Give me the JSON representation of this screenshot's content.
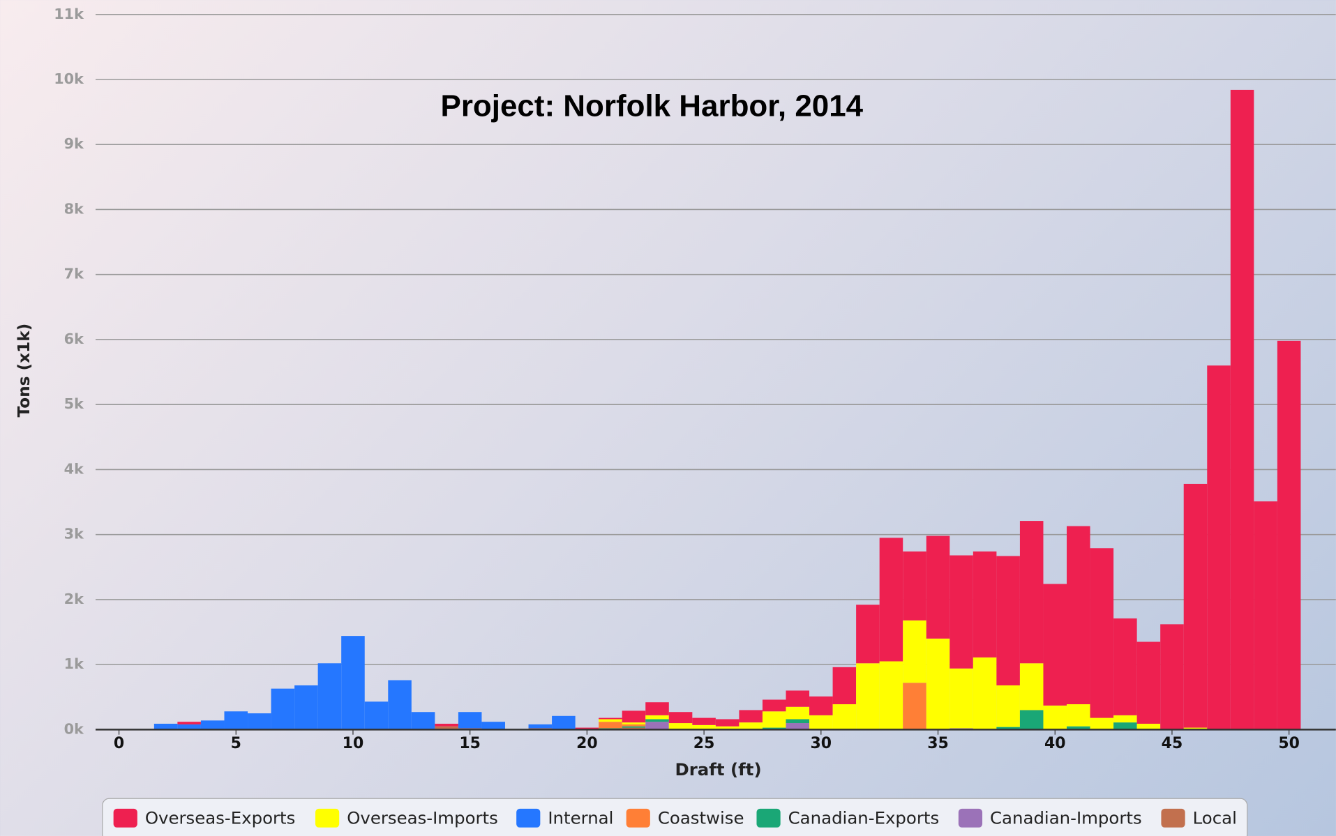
{
  "chart_data": {
    "type": "bar",
    "stacked": true,
    "title": "Project: Norfolk Harbor, 2014",
    "xlabel": "Draft (ft)",
    "ylabel": "Tons (x1k)",
    "x": [
      2,
      3,
      4,
      5,
      6,
      7,
      8,
      9,
      10,
      11,
      12,
      13,
      14,
      15,
      16,
      17,
      18,
      19,
      20,
      21,
      22,
      23,
      24,
      25,
      26,
      27,
      28,
      29,
      30,
      31,
      32,
      33,
      34,
      35,
      36,
      37,
      38,
      39,
      40,
      41,
      42,
      43,
      44,
      45,
      46,
      47,
      48,
      49,
      50
    ],
    "series": [
      {
        "name": "Overseas-Exports",
        "color": "#ee2050",
        "values": [
          null,
          0.04,
          null,
          null,
          null,
          null,
          null,
          null,
          null,
          null,
          null,
          null,
          0.04,
          null,
          null,
          null,
          null,
          null,
          0.03,
          0.02,
          0.18,
          0.2,
          0.17,
          0.11,
          0.11,
          0.19,
          0.18,
          0.25,
          0.29,
          0.57,
          0.9,
          1.9,
          1.06,
          1.58,
          1.74,
          1.63,
          1.99,
          2.19,
          1.87,
          2.74,
          2.61,
          1.49,
          1.26,
          1.61,
          3.75,
          5.6,
          9.84,
          3.51,
          5.98
        ]
      },
      {
        "name": "Overseas-Imports",
        "color": "#ffff00",
        "values": [
          null,
          null,
          null,
          null,
          null,
          null,
          null,
          null,
          null,
          null,
          null,
          null,
          null,
          null,
          null,
          null,
          null,
          null,
          null,
          0.04,
          0.03,
          0.06,
          0.1,
          0.07,
          0.05,
          0.11,
          0.25,
          0.19,
          0.22,
          0.39,
          1.02,
          1.05,
          0.96,
          1.4,
          0.92,
          1.11,
          0.64,
          0.72,
          0.37,
          0.34,
          0.18,
          0.11,
          0.09,
          0.01,
          0.03,
          null,
          null,
          null,
          null
        ]
      },
      {
        "name": "Internal",
        "color": "#2577ff",
        "values": [
          0.09,
          0.08,
          0.14,
          0.28,
          0.25,
          0.63,
          0.68,
          1.02,
          1.44,
          0.43,
          0.76,
          0.27,
          null,
          0.25,
          0.12,
          null,
          0.06,
          0.21,
          null,
          null,
          null,
          null,
          null,
          null,
          null,
          null,
          null,
          null,
          null,
          null,
          null,
          null,
          null,
          null,
          null,
          null,
          null,
          null,
          null,
          null,
          null,
          null,
          null,
          null,
          null,
          null,
          null,
          null,
          null
        ]
      },
      {
        "name": "Coastwise",
        "color": "#ff7f36",
        "values": [
          null,
          null,
          null,
          null,
          null,
          null,
          null,
          null,
          null,
          null,
          null,
          null,
          null,
          null,
          null,
          null,
          null,
          null,
          null,
          0.1,
          0.03,
          null,
          null,
          null,
          null,
          null,
          null,
          null,
          null,
          null,
          null,
          null,
          0.72,
          null,
          null,
          null,
          null,
          null,
          null,
          null,
          null,
          null,
          null,
          null,
          null,
          null,
          null,
          null,
          null
        ]
      },
      {
        "name": "Canadian-Exports",
        "color": "#1aa776",
        "values": [
          null,
          null,
          null,
          null,
          null,
          null,
          null,
          null,
          null,
          null,
          null,
          null,
          null,
          null,
          null,
          null,
          null,
          null,
          null,
          0.02,
          0.02,
          0.04,
          null,
          null,
          null,
          null,
          0.03,
          0.06,
          null,
          null,
          null,
          null,
          null,
          null,
          null,
          null,
          0.04,
          0.3,
          null,
          0.05,
          null,
          0.11,
          null,
          null,
          null,
          null,
          null,
          null,
          null
        ]
      },
      {
        "name": "Canadian-Imports",
        "color": "#9b72b8",
        "values": [
          null,
          null,
          null,
          null,
          null,
          null,
          null,
          null,
          null,
          null,
          null,
          null,
          null,
          null,
          null,
          null,
          null,
          null,
          null,
          null,
          null,
          0.12,
          null,
          null,
          null,
          null,
          null,
          0.1,
          null,
          null,
          null,
          null,
          null,
          null,
          0.02,
          null,
          null,
          null,
          null,
          null,
          null,
          null,
          null,
          null,
          null,
          null,
          null,
          null,
          null
        ]
      },
      {
        "name": "Local",
        "color": "#c2704e",
        "values": [
          null,
          null,
          null,
          null,
          null,
          null,
          null,
          null,
          null,
          null,
          null,
          null,
          0.05,
          0.02,
          null,
          null,
          0.02,
          null,
          null,
          null,
          0.03,
          null,
          null,
          null,
          null,
          null,
          null,
          null,
          null,
          null,
          null,
          null,
          null,
          null,
          null,
          null,
          null,
          null,
          null,
          null,
          null,
          null,
          null,
          null,
          null,
          null,
          null,
          null,
          null
        ]
      }
    ],
    "xlim": [
      -1,
      52
    ],
    "xticks": [
      0,
      5,
      10,
      15,
      20,
      25,
      30,
      35,
      40,
      45,
      50
    ],
    "ylim": [
      0,
      11
    ],
    "yticks": [
      {
        "value": 0,
        "label": "0k"
      },
      {
        "value": 1,
        "label": "1k"
      },
      {
        "value": 2,
        "label": "2k"
      },
      {
        "value": 3,
        "label": "3k"
      },
      {
        "value": 4,
        "label": "4k"
      },
      {
        "value": 5,
        "label": "5k"
      },
      {
        "value": 6,
        "label": "6k"
      },
      {
        "value": 7,
        "label": "7k"
      },
      {
        "value": 8,
        "label": "8k"
      },
      {
        "value": 9,
        "label": "9k"
      },
      {
        "value": 10,
        "label": "10k"
      },
      {
        "value": 11,
        "label": "11k"
      }
    ],
    "grid": true,
    "legend": "bottom"
  }
}
